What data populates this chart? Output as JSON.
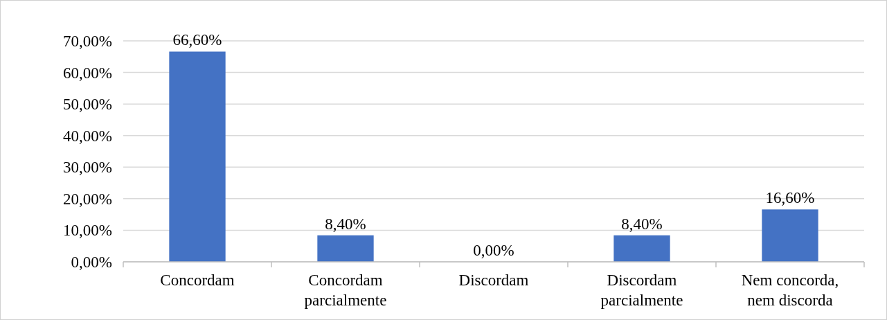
{
  "chart_data": {
    "type": "bar",
    "categories": [
      "Concordam",
      "Concordam parcialmente",
      "Discordam",
      "Discordam parcialmente",
      "Nem concorda, nem discorda"
    ],
    "values": [
      66.6,
      8.4,
      0,
      8.4,
      16.6
    ],
    "value_labels": [
      "66,60%",
      "8,40%",
      "0,00%",
      "8,40%",
      "16,60%"
    ],
    "color": "#4472c4",
    "ylim": [
      0,
      70
    ],
    "yticks": [
      {
        "value": 0,
        "label": "0,00%"
      },
      {
        "value": 10,
        "label": "10,00%"
      },
      {
        "value": 20,
        "label": "20,00%"
      },
      {
        "value": 30,
        "label": "30,00%"
      },
      {
        "value": 40,
        "label": "40,00%"
      },
      {
        "value": 50,
        "label": "50,00%"
      },
      {
        "value": 60,
        "label": "60,00%"
      },
      {
        "value": 70,
        "label": "70,00%"
      }
    ],
    "grid": "y"
  }
}
